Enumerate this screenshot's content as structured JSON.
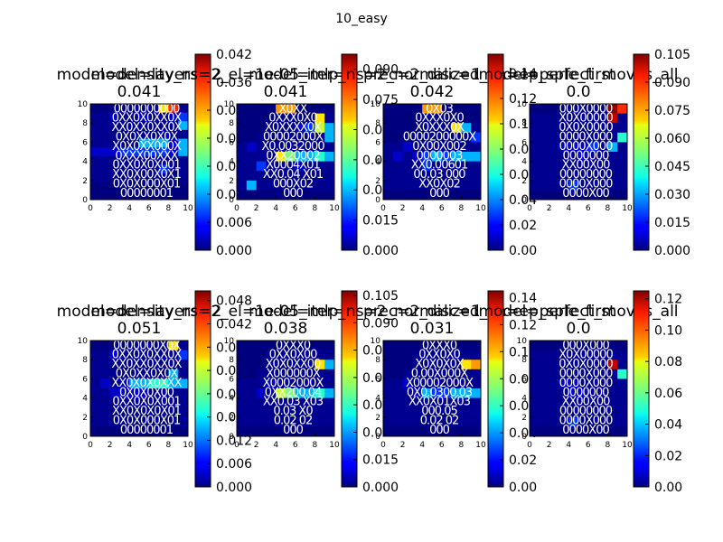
{
  "figure_title": "10_easy",
  "tick_labels": [
    "0",
    "2",
    "4",
    "6",
    "8",
    "10"
  ],
  "chart_data": [
    {
      "type": "heatmap",
      "title_line1": "model=density_ns=2",
      "title_line2": "0.041",
      "colorbar_max": 0.042,
      "colorbar_ticks": [
        "0.000",
        "0.006",
        "0.012",
        "0.018",
        "0.024",
        "0.030",
        "0.036",
        "0.042"
      ],
      "xlim": [
        0,
        10
      ],
      "ylim": [
        0,
        10
      ],
      "grid": [
        "....AAAIRB",
        "BBCBBCBBCD",
        "BBBBBBBBBE",
        "BBBBBBBCBB",
        "BBBBBEEECE",
        "CCCDDDDDCE",
        "BBBBBBBBBB",
        "BBBBBBBDBB",
        "BBBBBBBBBB",
        "..........",
        "..........",
        ""
      ],
      "overlay": [
        {
          "text": "0000000000",
          "row": 1
        },
        {
          "text": "0XX0X0XX0X",
          "row": 2
        },
        {
          "text": "XX0XX0XX0X",
          "row": 3
        },
        {
          "text": "0X0XX0X0X",
          "row": 4
        },
        {
          "text": "X0X0XX000X",
          "row": 5
        },
        {
          "text": "0XXX00XXX",
          "row": 6
        },
        {
          "text": "0XX0X0X001",
          "row": 7
        },
        {
          "text": "XX0X00X0X1",
          "row": 8
        },
        {
          "text": "0X0X000X01",
          "row": 9
        },
        {
          "text": "00000001",
          "row": 10
        }
      ]
    },
    {
      "type": "heatmap",
      "title_line1": "model=layers=2_el=1e-05_iter=1_prec=2_disc=1",
      "title_line2": "0.041",
      "colorbar_max": 0.0975,
      "colorbar_ticks": [
        "0.000",
        "0.015",
        "0.030",
        "0.045",
        "0.060",
        "0.075",
        "0.090"
      ],
      "xlim": [
        0,
        10
      ],
      "ylim": [
        0,
        10
      ],
      "grid": [
        "....QQ....",
        "....AA..IB",
        "...BBBCDHE",
        "..B.BBBBBE",
        "BCBBBBBBBB",
        "BBBBIGEEFE",
        "BBDBBBCBBB",
        "BBBBBBBBBB",
        "BEBBBBBBBB",
        ".........."
      ],
      "overlay": [
        {
          "text": "X0XX",
          "row": 1
        },
        {
          "text": "0XXX0X0",
          "row": 2
        },
        {
          "text": "X0XXXX0X",
          "row": 3
        },
        {
          "text": "00002000X",
          "row": 4
        },
        {
          "text": "X0.0032000",
          "row": 5
        },
        {
          "text": "0XX20002",
          "row": 6
        },
        {
          "text": "X0004X01",
          "row": 7
        },
        {
          "text": "XX0.04 X01",
          "row": 8
        },
        {
          "text": "000X02",
          "row": 9
        },
        {
          "text": "000",
          "row": 10
        }
      ]
    },
    {
      "type": "heatmap",
      "title_line1": "model=mlp_ns=2_normalized_on=ep_sple_first",
      "title_line2": "0.042",
      "colorbar_max": 0.155,
      "colorbar_ticks": [
        "0.00",
        "0.02",
        "0.04",
        "0.06",
        "0.08",
        "0.10",
        "0.12",
        "0.14"
      ],
      "xlim": [
        0,
        10
      ],
      "ylim": [
        0,
        10
      ],
      "grid": [
        "....QQ....",
        "....AA....",
        "....BAAIEB",
        "...BBBBBBD",
        "BBCBBBBBBB",
        "BCBCDEDEEE",
        "BBBBDBBBBB",
        "BBBBBBBBBB",
        "BBBBBBBBBB",
        ".........."
      ],
      "overlay": [
        {
          "text": "0X03",
          "row": 1
        },
        {
          "text": "0XXX0X0",
          "row": 2
        },
        {
          "text": "X0XXX0X",
          "row": 3
        },
        {
          "text": "0000200000X",
          "row": 4
        },
        {
          "text": "0X00X002",
          "row": 5
        },
        {
          "text": "0000003",
          "row": 6
        },
        {
          "text": "XX0.00601",
          "row": 7
        },
        {
          "text": "00.03  000",
          "row": 8
        },
        {
          "text": "XX0X02",
          "row": 9
        },
        {
          "text": "000",
          "row": 10
        }
      ]
    },
    {
      "type": "heatmap",
      "title_line1": "model=perfect_moves_all",
      "title_line2": "0.0",
      "colorbar_max": 0.105,
      "colorbar_ticks": [
        "0.000",
        "0.015",
        "0.030",
        "0.045",
        "0.060",
        "0.075",
        "0.090",
        "0.105"
      ],
      "xlim": [
        0,
        10
      ],
      "ylim": [
        0,
        10
      ],
      "grid": [
        "....AA..TR",
        "BBBBBBBBSB",
        "BBBBBBBBBB",
        "BBBBBBBBBF",
        "BBBCCCDBEB",
        "BBBBBCBBBB",
        "BBBBBBBBBB",
        "BBBBBBBBBB",
        "BBBBDBBBBB",
        ".........."
      ],
      "overlay": [
        {
          "text": "000X0000",
          "row": 1
        },
        {
          "text": "X0X00000",
          "row": 2
        },
        {
          "text": "0X0X0000",
          "row": 3
        },
        {
          "text": "0000X000",
          "row": 4
        },
        {
          "text": "0000X000",
          "row": 5
        },
        {
          "text": "0000000",
          "row": 6
        },
        {
          "text": "XX00X00",
          "row": 7
        },
        {
          "text": "00000000",
          "row": 8
        },
        {
          "text": "0000X000",
          "row": 9
        },
        {
          "text": "0000X00",
          "row": 10
        }
      ]
    },
    {
      "type": "heatmap",
      "title_line1": "model=density_ns=2",
      "title_line2": "0.051",
      "colorbar_max": 0.0505,
      "colorbar_ticks": [
        "0.000",
        "0.006",
        "0.012",
        "0.018",
        "0.024",
        "0.030",
        "0.036",
        "0.042",
        "0.048"
      ],
      "xlim": [
        0,
        10
      ],
      "ylim": [
        0,
        10
      ],
      "grid": [
        "....AAABIB",
        "BBCBBBBBBD",
        "BBBBBBBBBB",
        "BBBBBBBBEB",
        "BCBCEEFFEE",
        "BBCCCCBBBB",
        "BBBBBBBBBB",
        "BBBBBBBBBB",
        "BBBBBBBBBB",
        ".........."
      ],
      "overlay": [
        {
          "text": "0000000X0X",
          "row": 1
        },
        {
          "text": "0XX0X0XX0X",
          "row": 2
        },
        {
          "text": "XX0XX0XX0X",
          "row": 3
        },
        {
          "text": "0X0XX0X0X",
          "row": 4
        },
        {
          "text": "XX0X0X0XXX",
          "row": 5
        },
        {
          "text": "0X0X0X00",
          "row": 6
        },
        {
          "text": "0XX0X0X001",
          "row": 7
        },
        {
          "text": "XX0X0X0X01",
          "row": 8
        },
        {
          "text": "0X0X000X01",
          "row": 9
        },
        {
          "text": "00000001",
          "row": 10
        }
      ]
    },
    {
      "type": "heatmap",
      "title_line1": "model=layers=2_el=1e-05_iter=1_prec=2_disc=1",
      "title_line2": "0.038",
      "colorbar_max": 0.1075,
      "colorbar_ticks": [
        "0.000",
        "0.015",
        "0.030",
        "0.045",
        "0.060",
        "0.075",
        "0.090",
        "0.105"
      ],
      "xlim": [
        0,
        10
      ],
      "ylim": [
        0,
        10
      ],
      "grid": [
        "..........",
        "...BBBBBBB",
        "...BBBBBIE",
        "..BBBBBBBB",
        "BBBCBBBBBB",
        "BBCBHGEEFE",
        "BBBBBBBBBB",
        "BBBBBBBBBB",
        "BBBBBBBBBB",
        ".........."
      ],
      "overlay": [
        {
          "text": "0XXX0",
          "row": 1
        },
        {
          "text": "0XX0X00",
          "row": 2
        },
        {
          "text": "X0X0XX00",
          "row": 3
        },
        {
          "text": "X000000X",
          "row": 4
        },
        {
          "text": "X0002000X",
          "row": 5
        },
        {
          "text": "0XX200.04",
          "row": 6
        },
        {
          "text": "XX0.03 X03",
          "row": 7
        },
        {
          "text": "0.03  X0",
          "row": 8
        },
        {
          "text": "0.02 02",
          "row": 9
        },
        {
          "text": "000",
          "row": 10
        }
      ]
    },
    {
      "type": "heatmap",
      "title_line1": "model=mlp_ns=2_normalized_on=ep_sple_first",
      "title_line2": "0.031",
      "colorbar_max": 0.145,
      "colorbar_ticks": [
        "0.00",
        "0.02",
        "0.04",
        "0.06",
        "0.08",
        "0.10",
        "0.12",
        "0.14"
      ],
      "xlim": [
        0,
        10
      ],
      "ylim": [
        0,
        10
      ],
      "grid": [
        "..........",
        "...BBBBBBB",
        "...BBBBBIQ",
        "..BBBBBBBB",
        "BBCBBBBBBB",
        "BBBCEDDEEE",
        "BBBBBBBBBB",
        "BBBBBBBBBB",
        "BBBBBBBBBB",
        ".........."
      ],
      "overlay": [
        {
          "text": "0XXX0",
          "row": 1
        },
        {
          "text": "0XX0X0",
          "row": 2
        },
        {
          "text": "X0X0X0X",
          "row": 3
        },
        {
          "text": "0.00X000X",
          "row": 4
        },
        {
          "text": "X00002000X",
          "row": 5
        },
        {
          "text": "0X0.0300.03",
          "row": 6
        },
        {
          "text": "XX0X01X03",
          "row": 7
        },
        {
          "text": "000.05",
          "row": 8
        },
        {
          "text": "0.02 02",
          "row": 9
        },
        {
          "text": "000",
          "row": 10
        }
      ]
    },
    {
      "type": "heatmap",
      "title_line1": "model=perfect_moves_all",
      "title_line2": "0.0",
      "colorbar_max": 0.125,
      "colorbar_ticks": [
        "0.00",
        "0.02",
        "0.04",
        "0.06",
        "0.08",
        "0.10",
        "0.12"
      ],
      "xlim": [
        0,
        10
      ],
      "ylim": [
        0,
        10
      ],
      "grid": [
        "..........",
        "BBBBBBBBBB",
        "BBBBBBBBSB",
        "BBBBBBBBBF",
        "BBBCCBBBBB",
        "BBBBCCBBBB",
        "BBBBBBBBBB",
        "BBBBBBBBBB",
        "BBBBDBBBBB",
        ".........."
      ],
      "overlay": [
        {
          "text": "000X000",
          "row": 1
        },
        {
          "text": "X0X00000",
          "row": 2
        },
        {
          "text": "0X0X0000",
          "row": 3
        },
        {
          "text": "0000X000",
          "row": 4
        },
        {
          "text": "0000X000",
          "row": 5
        },
        {
          "text": "0000000",
          "row": 6
        },
        {
          "text": "XX00X00",
          "row": 7
        },
        {
          "text": "00000000",
          "row": 8
        },
        {
          "text": "0000X000",
          "row": 9
        },
        {
          "text": "0000X00",
          "row": 10
        }
      ]
    }
  ]
}
